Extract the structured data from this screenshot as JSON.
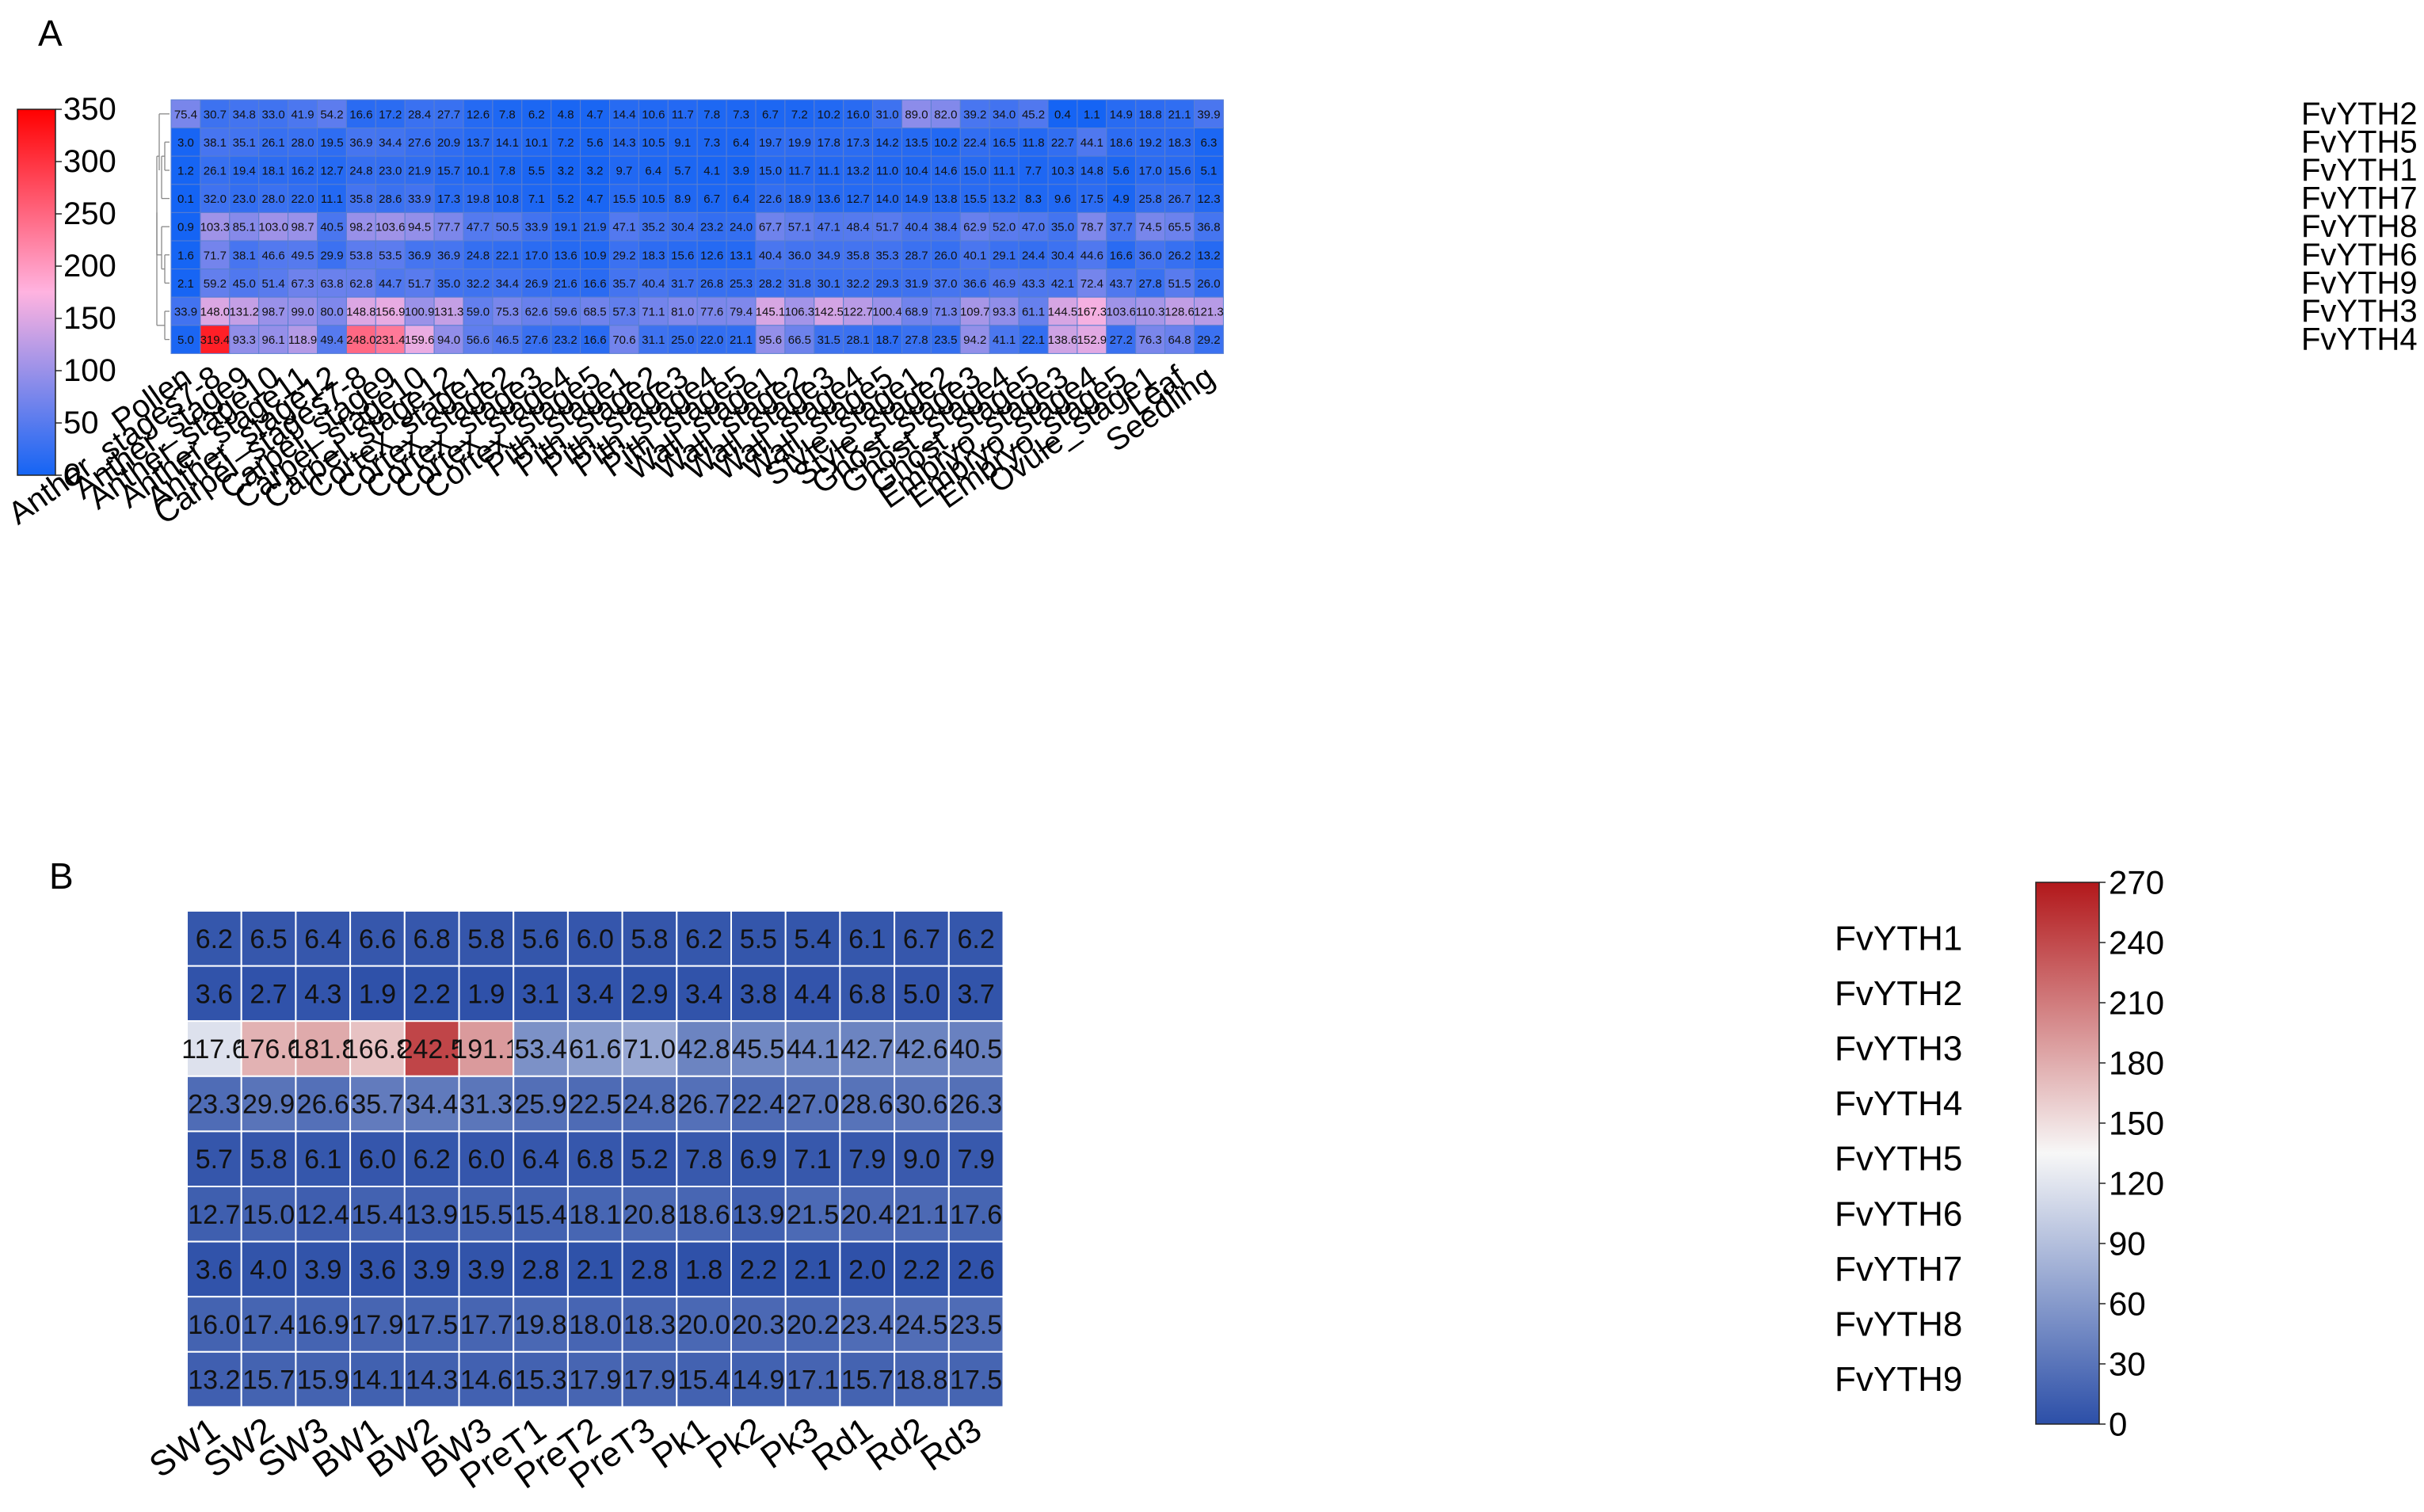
{
  "chart_data": [
    {
      "panel": "A",
      "type": "heatmap",
      "title": "",
      "colormap": [
        "#1464f4",
        "#ffb3e0",
        "#ff0000"
      ],
      "vmin": 0,
      "vmax": 350,
      "colorbar_ticks": [
        "0",
        "50",
        "100",
        "150",
        "200",
        "250",
        "300",
        "350"
      ],
      "dendrogram": true,
      "rows": [
        "FvYTH2",
        "FvYTH5",
        "FvYTH1",
        "FvYTH7",
        "FvYTH8",
        "FvYTH6",
        "FvYTH9",
        "FvYTH3",
        "FvYTH4"
      ],
      "columns": [
        "Pollen",
        "Anther_stages7-8",
        "Anther_stage9",
        "Anther_stage10",
        "Anther_stage11",
        "Anther_stage12",
        "Carpel_stages7-8",
        "Carpel_stage9",
        "Carpel_stage10",
        "Carpel_stage12",
        "Cortex_stage1",
        "Cortex_stage2",
        "Cortex_stage3",
        "Cortex_stage4",
        "Cortex_stage5",
        "Pith_stage1",
        "Pith_stage2",
        "Pith_stage3",
        "Pith_stage4",
        "Pith_stage5",
        "Wall_stage1",
        "Wall_stage2",
        "Wall_stage3",
        "Wall_stage4",
        "Wall_stage5",
        "Style_stage1",
        "Style_stage2",
        "Ghost_stage3",
        "Ghost_stage4",
        "Ghost_stage5",
        "Embryo_stage3",
        "Embryo_stage4",
        "Embryo_stage5",
        "Ovule_stage1",
        "Leaf",
        "Seedling"
      ],
      "values": [
        [
          "75.4",
          "30.7",
          "34.8",
          "33.0",
          "41.9",
          "54.2",
          "16.6",
          "17.2",
          "28.4",
          "27.7",
          "12.6",
          "7.8",
          "6.2",
          "4.8",
          "4.7",
          "14.4",
          "10.6",
          "11.7",
          "7.8",
          "7.3",
          "6.7",
          "7.2",
          "10.2",
          "16.0",
          "31.0",
          "89.0",
          "82.0",
          "39.2",
          "34.0",
          "45.2",
          "0.4",
          "1.1",
          "14.9",
          "18.8",
          "21.1",
          "39.9"
        ],
        [
          "3.0",
          "38.1",
          "35.1",
          "26.1",
          "28.0",
          "19.5",
          "36.9",
          "34.4",
          "27.6",
          "20.9",
          "13.7",
          "14.1",
          "10.1",
          "7.2",
          "5.6",
          "14.3",
          "10.5",
          "9.1",
          "7.3",
          "6.4",
          "19.7",
          "19.9",
          "17.8",
          "17.3",
          "14.2",
          "13.5",
          "10.2",
          "22.4",
          "16.5",
          "11.8",
          "22.7",
          "44.1",
          "18.6",
          "19.2",
          "18.3",
          "6.3"
        ],
        [
          "1.2",
          "26.1",
          "19.4",
          "18.1",
          "16.2",
          "12.7",
          "24.8",
          "23.0",
          "21.9",
          "15.7",
          "10.1",
          "7.8",
          "5.5",
          "3.2",
          "3.2",
          "9.7",
          "6.4",
          "5.7",
          "4.1",
          "3.9",
          "15.0",
          "11.7",
          "11.1",
          "13.2",
          "11.0",
          "10.4",
          "14.6",
          "15.0",
          "11.1",
          "7.7",
          "10.3",
          "14.8",
          "5.6",
          "17.0",
          "15.6",
          "5.1"
        ],
        [
          "0.1",
          "32.0",
          "23.0",
          "28.0",
          "22.0",
          "11.1",
          "35.8",
          "28.6",
          "33.9",
          "17.3",
          "19.8",
          "10.8",
          "7.1",
          "5.2",
          "4.7",
          "15.5",
          "10.5",
          "8.9",
          "6.7",
          "6.4",
          "22.6",
          "18.9",
          "13.6",
          "12.7",
          "14.0",
          "14.9",
          "13.8",
          "15.5",
          "13.2",
          "8.3",
          "9.6",
          "17.5",
          "4.9",
          "25.8",
          "26.7",
          "12.3"
        ],
        [
          "0.9",
          "103.3",
          "85.1",
          "103.0",
          "98.7",
          "40.5",
          "98.2",
          "103.6",
          "94.5",
          "77.7",
          "47.7",
          "50.5",
          "33.9",
          "19.1",
          "21.9",
          "47.1",
          "35.2",
          "30.4",
          "23.2",
          "24.0",
          "67.7",
          "57.1",
          "47.1",
          "48.4",
          "51.7",
          "40.4",
          "38.4",
          "62.9",
          "52.0",
          "47.0",
          "35.0",
          "78.7",
          "37.7",
          "74.5",
          "65.5",
          "36.8"
        ],
        [
          "1.6",
          "71.7",
          "38.1",
          "46.6",
          "49.5",
          "29.9",
          "53.8",
          "53.5",
          "36.9",
          "36.9",
          "24.8",
          "22.1",
          "17.0",
          "13.6",
          "10.9",
          "29.2",
          "18.3",
          "15.6",
          "12.6",
          "13.1",
          "40.4",
          "36.0",
          "34.9",
          "35.8",
          "35.3",
          "28.7",
          "26.0",
          "40.1",
          "29.1",
          "24.4",
          "30.4",
          "44.6",
          "16.6",
          "36.0",
          "26.2",
          "13.2"
        ],
        [
          "2.1",
          "59.2",
          "45.0",
          "51.4",
          "67.3",
          "63.8",
          "62.8",
          "44.7",
          "51.7",
          "35.0",
          "32.2",
          "34.4",
          "26.9",
          "21.6",
          "16.6",
          "35.7",
          "40.4",
          "31.7",
          "26.8",
          "25.3",
          "28.2",
          "31.8",
          "30.1",
          "32.2",
          "29.3",
          "31.9",
          "37.0",
          "36.6",
          "46.9",
          "43.3",
          "42.1",
          "72.4",
          "43.7",
          "27.8",
          "51.5",
          "26.0"
        ],
        [
          "33.9",
          "148.0",
          "131.2",
          "98.7",
          "99.0",
          "80.0",
          "148.8",
          "156.9",
          "100.9",
          "131.3",
          "59.0",
          "75.3",
          "62.6",
          "59.6",
          "68.5",
          "57.3",
          "71.1",
          "81.0",
          "77.6",
          "79.4",
          "145.1",
          "106.3",
          "142.5",
          "122.7",
          "100.4",
          "68.9",
          "71.3",
          "109.7",
          "93.3",
          "61.1",
          "144.5",
          "167.3",
          "103.6",
          "110.3",
          "128.6",
          "121.3"
        ],
        [
          "5.0",
          "319.4",
          "93.3",
          "96.1",
          "118.9",
          "49.4",
          "248.0",
          "231.4",
          "159.6",
          "94.0",
          "56.6",
          "46.5",
          "27.6",
          "23.2",
          "16.6",
          "70.6",
          "31.1",
          "25.0",
          "22.0",
          "21.1",
          "95.6",
          "66.5",
          "31.5",
          "28.1",
          "18.7",
          "27.8",
          "23.5",
          "94.2",
          "41.1",
          "22.1",
          "138.6",
          "152.9",
          "27.2",
          "76.3",
          "64.8",
          "29.2"
        ]
      ]
    },
    {
      "panel": "B",
      "type": "heatmap",
      "title": "",
      "colormap": [
        "#2c4fa8",
        "#f7f7f7",
        "#b2181b"
      ],
      "vmin": 0,
      "vmax": 270,
      "colorbar_ticks": [
        "0",
        "30",
        "60",
        "90",
        "120",
        "150",
        "180",
        "210",
        "240",
        "270"
      ],
      "dendrogram": false,
      "rows": [
        "FvYTH1",
        "FvYTH2",
        "FvYTH3",
        "FvYTH4",
        "FvYTH5",
        "FvYTH6",
        "FvYTH7",
        "FvYTH8",
        "FvYTH9"
      ],
      "columns": [
        "SW1",
        "SW2",
        "SW3",
        "BW1",
        "BW2",
        "BW3",
        "PreT1",
        "PreT2",
        "PreT3",
        "Pk1",
        "Pk2",
        "Pk3",
        "Rd1",
        "Rd2",
        "Rd3"
      ],
      "values": [
        [
          "6.2",
          "6.5",
          "6.4",
          "6.6",
          "6.8",
          "5.8",
          "5.6",
          "6.0",
          "5.8",
          "6.2",
          "5.5",
          "5.4",
          "6.1",
          "6.7",
          "6.2"
        ],
        [
          "3.6",
          "2.7",
          "4.3",
          "1.9",
          "2.2",
          "1.9",
          "3.1",
          "3.4",
          "2.9",
          "3.4",
          "3.8",
          "4.4",
          "6.8",
          "5.0",
          "3.7"
        ],
        [
          "117.6",
          "176.6",
          "181.8",
          "166.8",
          "242.5",
          "191.1",
          "53.4",
          "61.6",
          "71.0",
          "42.8",
          "45.5",
          "44.1",
          "42.7",
          "42.6",
          "40.5"
        ],
        [
          "23.3",
          "29.9",
          "26.6",
          "35.7",
          "34.4",
          "31.3",
          "25.9",
          "22.5",
          "24.8",
          "26.7",
          "22.4",
          "27.0",
          "28.6",
          "30.6",
          "26.3"
        ],
        [
          "5.7",
          "5.8",
          "6.1",
          "6.0",
          "6.2",
          "6.0",
          "6.4",
          "6.8",
          "5.2",
          "7.8",
          "6.9",
          "7.1",
          "7.9",
          "9.0",
          "7.9"
        ],
        [
          "12.7",
          "15.0",
          "12.4",
          "15.4",
          "13.9",
          "15.5",
          "15.4",
          "18.1",
          "20.8",
          "18.6",
          "13.9",
          "21.5",
          "20.4",
          "21.1",
          "17.6"
        ],
        [
          "3.6",
          "4.0",
          "3.9",
          "3.6",
          "3.9",
          "3.9",
          "2.8",
          "2.1",
          "2.8",
          "1.8",
          "2.2",
          "2.1",
          "2.0",
          "2.2",
          "2.6"
        ],
        [
          "16.0",
          "17.4",
          "16.9",
          "17.9",
          "17.5",
          "17.7",
          "19.8",
          "18.0",
          "18.3",
          "20.0",
          "20.3",
          "20.2",
          "23.4",
          "24.5",
          "23.5"
        ],
        [
          "13.2",
          "15.7",
          "15.9",
          "14.1",
          "14.3",
          "14.6",
          "15.3",
          "17.9",
          "17.9",
          "15.4",
          "14.9",
          "17.1",
          "15.7",
          "18.8",
          "17.5"
        ]
      ]
    }
  ]
}
